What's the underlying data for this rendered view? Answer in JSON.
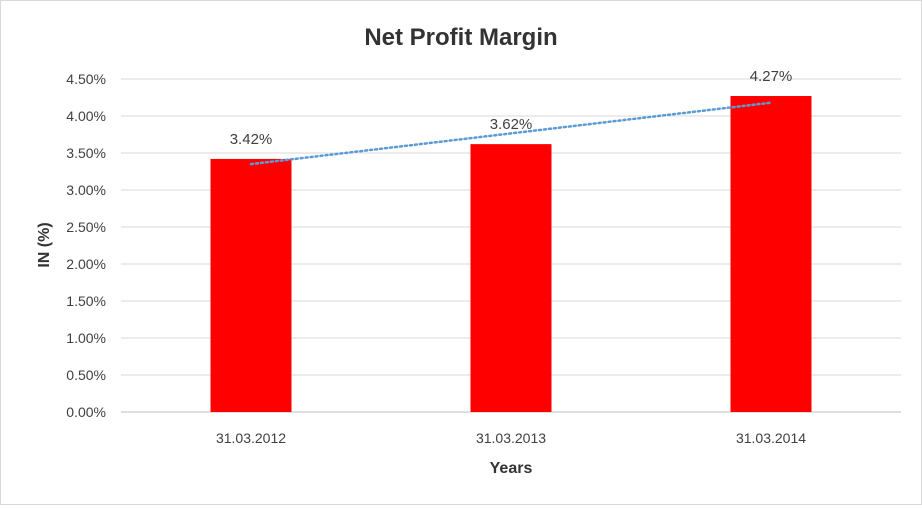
{
  "chart_data": {
    "type": "bar",
    "title": "Net Profit Margin",
    "xlabel": "Years",
    "ylabel": "IN (%)",
    "categories": [
      "31.03.2012",
      "31.03.2013",
      "31.03.2014"
    ],
    "series": [
      {
        "values": [
          3.42,
          3.62,
          4.27
        ],
        "labels": [
          "3.42%",
          "3.62%",
          "4.27%"
        ],
        "color": "#ff0000"
      }
    ],
    "trendline": {
      "type": "linear",
      "style": "dotted",
      "color": "#5b9bd5",
      "start": 3.35,
      "end": 4.18
    },
    "ylim": [
      0,
      4.5
    ],
    "yticks": [
      "0.00%",
      "0.50%",
      "1.00%",
      "1.50%",
      "2.00%",
      "2.50%",
      "3.00%",
      "3.50%",
      "4.00%",
      "4.50%"
    ],
    "grid": true,
    "legend": "none"
  }
}
